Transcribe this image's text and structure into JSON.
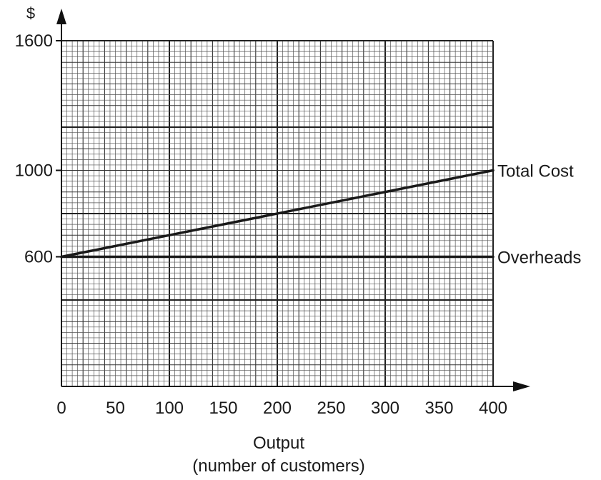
{
  "chart_data": {
    "type": "line",
    "title": "",
    "xlabel": "Output",
    "xlabel_sub": "(number of customers)",
    "ylabel": "$",
    "xlim": [
      0,
      400
    ],
    "ylim": [
      0,
      1600
    ],
    "x_ticks": [
      0,
      50,
      100,
      150,
      200,
      250,
      300,
      350,
      400
    ],
    "y_ticks": [
      600,
      1000,
      1600
    ],
    "grid": true,
    "series": [
      {
        "name": "Total Cost",
        "x": [
          0,
          400
        ],
        "y": [
          600,
          1000
        ]
      },
      {
        "name": "Overheads",
        "x": [
          0,
          400
        ],
        "y": [
          600,
          600
        ]
      }
    ]
  }
}
